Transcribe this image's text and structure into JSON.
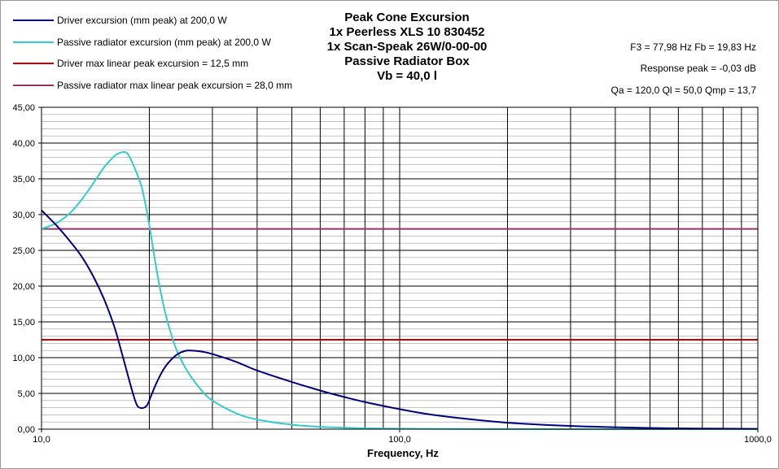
{
  "chart_data": {
    "type": "line",
    "title": [
      "Peak Cone Excursion",
      "1x Peerless XLS 10 830452",
      "1x Scan-Speak 26W/0-00-00",
      "Passive Radiator Box",
      "Vb = 40,0 l"
    ],
    "xlabel": "Frequency, Hz",
    "ylabel": "",
    "xscale": "log",
    "xlim": [
      10,
      1000
    ],
    "ylim": [
      0,
      45
    ],
    "x_tick_labels": [
      {
        "value": 10,
        "label": "10,0"
      },
      {
        "value": 100,
        "label": "100,0"
      },
      {
        "value": 1000,
        "label": "1000,0"
      }
    ],
    "y_tick_labels": [
      "0,00",
      "5,00",
      "10,00",
      "15,00",
      "20,00",
      "25,00",
      "30,00",
      "35,00",
      "40,00",
      "45,00"
    ],
    "y_ticks": [
      0,
      5,
      10,
      15,
      20,
      25,
      30,
      35,
      40,
      45
    ],
    "grid": true,
    "legend_placement": "top-left",
    "series": [
      {
        "name": "Driver excursion (mm peak) at 200,0 W",
        "color": "#000080",
        "x": [
          10,
          11,
          12,
          13,
          14,
          15,
          16,
          17,
          18,
          18.5,
          19,
          19.5,
          19.8,
          20.2,
          21,
          22,
          23,
          24,
          25,
          26,
          28,
          30,
          35,
          40,
          50,
          60,
          70,
          80,
          100,
          120,
          150,
          200,
          300,
          500,
          700,
          1000
        ],
        "values": [
          30.6,
          28.5,
          26.3,
          24.0,
          21.2,
          18.0,
          14.2,
          9.5,
          5.0,
          3.3,
          2.95,
          3.1,
          3.5,
          4.6,
          6.6,
          8.5,
          9.7,
          10.5,
          10.9,
          11.0,
          10.85,
          10.5,
          9.4,
          8.2,
          6.6,
          5.4,
          4.5,
          3.8,
          2.8,
          2.1,
          1.5,
          0.9,
          0.45,
          0.17,
          0.09,
          0.05
        ]
      },
      {
        "name": "Passive radiator excursion (mm peak) at 200,0 W",
        "color": "#33CCCC",
        "x": [
          10,
          11,
          12,
          13,
          14,
          15,
          16,
          16.5,
          17,
          17.4,
          17.8,
          18.2,
          18.6,
          19,
          19.5,
          20,
          21,
          22,
          23,
          24,
          25,
          26,
          28,
          30,
          35,
          40,
          50,
          60,
          80,
          100,
          150,
          200,
          300,
          500,
          1000
        ],
        "values": [
          28.0,
          28.8,
          30.2,
          32.2,
          34.5,
          36.7,
          38.2,
          38.6,
          38.75,
          38.5,
          37.6,
          36.5,
          35.3,
          34.0,
          31.5,
          28.5,
          22.0,
          16.9,
          13.3,
          10.7,
          8.9,
          7.5,
          5.4,
          4.0,
          2.2,
          1.35,
          0.62,
          0.33,
          0.13,
          0.07,
          0.02,
          0.01,
          0.0,
          0.0,
          0.0
        ]
      },
      {
        "name": "Driver max linear peak excursion = 12,5 mm",
        "color": "#CC0000",
        "x": [
          10,
          1000
        ],
        "values": [
          12.5,
          12.5
        ]
      },
      {
        "name": "Passive radiator max linear peak excursion = 28,0 mm",
        "color": "#993366",
        "x": [
          10,
          1000
        ],
        "values": [
          28.0,
          28.0
        ]
      }
    ],
    "annotations": [
      "F3 = 77,98 Hz  Fb = 19,83 Hz",
      "Response  peak = -0,03 dB",
      "Qa = 120,0  Ql = 50,0  Qmp = 13,7"
    ]
  }
}
